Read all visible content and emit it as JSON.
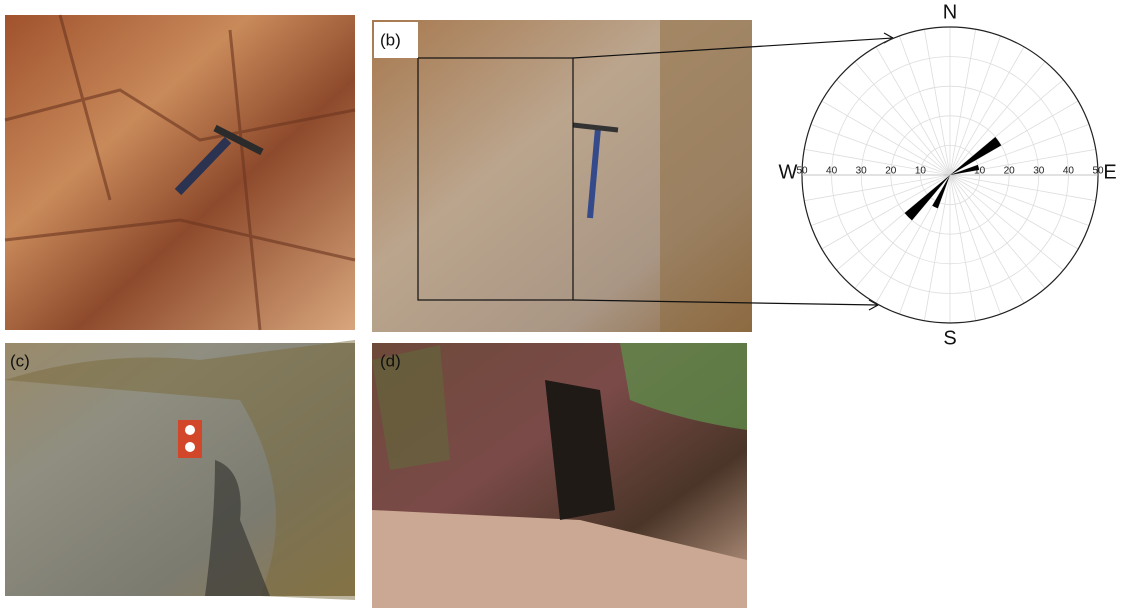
{
  "panels": {
    "b": "(b)",
    "c": "(c)",
    "d": "(d)"
  },
  "chart_data": {
    "type": "rose",
    "x": [
      55,
      75,
      205,
      225
    ],
    "values": [
      20,
      10,
      12,
      20
    ],
    "rlim": [
      0,
      50
    ],
    "rticks": [
      10,
      20,
      30,
      40,
      50
    ],
    "directions": {
      "N": "N",
      "E": "E",
      "S": "S",
      "W": "W"
    },
    "grid": true,
    "color": "#000000"
  }
}
